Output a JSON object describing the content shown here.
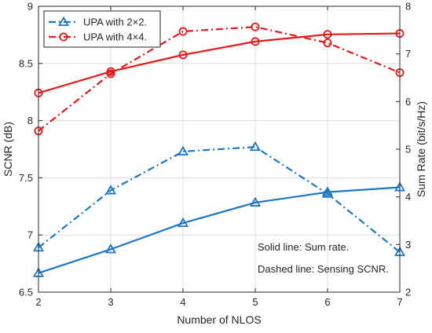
{
  "chart_data": {
    "type": "line",
    "title": "",
    "xlabel": "Number of NLOS",
    "ylabel_left": "SCNR (dB)",
    "ylabel_right": "Sum Rate (bit/s/Hz)",
    "x": [
      2,
      3,
      4,
      5,
      6,
      7
    ],
    "x_ticks": [
      "2",
      "3",
      "4",
      "5",
      "6",
      "7"
    ],
    "xlim": [
      2,
      7
    ],
    "ylim_left": [
      6.5,
      9
    ],
    "ylim_right": [
      2,
      8
    ],
    "left_ticks": [
      "6.5",
      "7",
      "7.5",
      "8",
      "8.5",
      "9"
    ],
    "right_ticks": [
      "2",
      "3",
      "4",
      "5",
      "6",
      "7",
      "8"
    ],
    "grid": true,
    "legend_position": "top-left",
    "legend": [
      {
        "label": "UPA with 2×2.",
        "color": "#1f77c4",
        "marker": "triangle",
        "dash": "dash-dot"
      },
      {
        "label": "UPA with 4×4.",
        "color": "#e31a1c",
        "marker": "circle",
        "dash": "dash-dot"
      }
    ],
    "series": [
      {
        "group": "2x2",
        "axis": "right",
        "line": "solid",
        "color": "#1f77c4",
        "marker": "triangle",
        "values": [
          2.4,
          2.9,
          3.45,
          3.88,
          4.1,
          4.2
        ]
      },
      {
        "group": "2x2",
        "axis": "left",
        "line": "dashdot",
        "color": "#1f77c4",
        "marker": "triangle",
        "values": [
          6.89,
          7.39,
          7.73,
          7.77,
          7.36,
          6.85
        ]
      },
      {
        "group": "4x4",
        "axis": "right",
        "line": "solid",
        "color": "#e31a1c",
        "marker": "circle",
        "values": [
          6.18,
          6.63,
          6.98,
          7.26,
          7.41,
          7.43
        ]
      },
      {
        "group": "4x4",
        "axis": "left",
        "line": "dashdot",
        "color": "#e31a1c",
        "marker": "circle",
        "values": [
          7.91,
          8.41,
          8.78,
          8.82,
          8.68,
          8.42
        ]
      }
    ],
    "annotations": [
      "Solid line: Sum rate.",
      "Dashed line: Sensing SCNR."
    ]
  }
}
